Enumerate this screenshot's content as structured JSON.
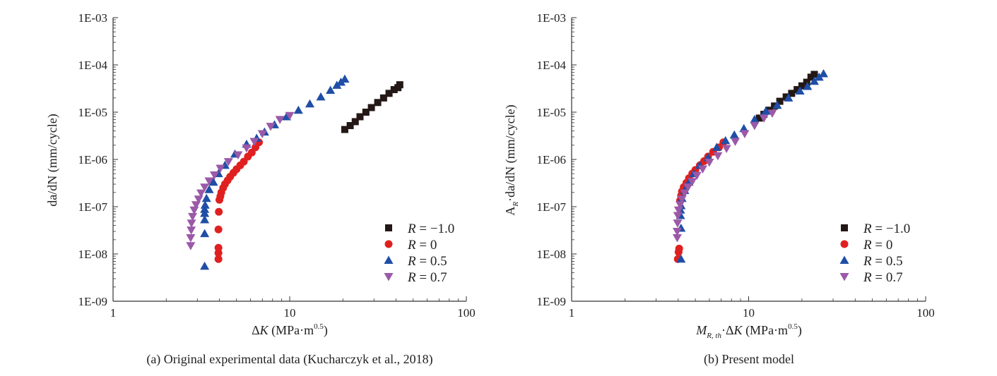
{
  "chart_data": [
    {
      "type": "scatter",
      "xscale": "log",
      "yscale": "log",
      "xlim": [
        1,
        100
      ],
      "ylim": [
        1e-09,
        0.001
      ],
      "xticks": [
        {
          "value": 1,
          "label": "1"
        },
        {
          "value": 10,
          "label": "10"
        },
        {
          "value": 100,
          "label": "100"
        }
      ],
      "yticks": [
        {
          "value": 1e-09,
          "label": "1E-09"
        },
        {
          "value": 1e-08,
          "label": "1E-08"
        },
        {
          "value": 1e-07,
          "label": "1E-07"
        },
        {
          "value": 1e-06,
          "label": "1E-06"
        },
        {
          "value": 1e-05,
          "label": "1E-05"
        },
        {
          "value": 0.0001,
          "label": "1E-04"
        },
        {
          "value": 0.001,
          "label": "1E-03"
        }
      ],
      "ylabel": "da/dN (mm/cycle)",
      "xlabel": {
        "prefix": "",
        "prefix_sub": "",
        "delta": "Δ",
        "k": "K",
        "unit": " (MPa·m",
        "sup": "0.5",
        "close": ")"
      },
      "caption": "(a) Original experimental data (Kucharczyk et al., 2018)",
      "legend_position": "bottom-right",
      "series": [
        {
          "name": "R = −1.0",
          "label_r": "R",
          "label_val": " = −1.0",
          "marker": "square",
          "color": "#231816",
          "points": [
            [
              20.5,
              4.3e-06
            ],
            [
              22,
              5.2e-06
            ],
            [
              23.5,
              6.3e-06
            ],
            [
              25,
              8e-06
            ],
            [
              27,
              1e-05
            ],
            [
              29,
              1.25e-05
            ],
            [
              31.5,
              1.6e-05
            ],
            [
              34,
              2e-05
            ],
            [
              36.5,
              2.5e-05
            ],
            [
              39,
              3e-05
            ],
            [
              41,
              3.3e-05
            ],
            [
              42,
              3.8e-05
            ]
          ]
        },
        {
          "name": "R = 0",
          "label_r": "R",
          "label_val": " = 0",
          "marker": "circle",
          "color": "#e02020",
          "points": [
            [
              3.95,
              7.8e-09
            ],
            [
              3.95,
              1.05e-08
            ],
            [
              3.95,
              1.35e-08
            ],
            [
              3.95,
              3.3e-08
            ],
            [
              3.97,
              7.8e-08
            ],
            [
              4.0,
              1.4e-07
            ],
            [
              4.05,
              1.65e-07
            ],
            [
              4.1,
              2e-07
            ],
            [
              4.2,
              2.5e-07
            ],
            [
              4.3,
              3e-07
            ],
            [
              4.45,
              3.6e-07
            ],
            [
              4.6,
              4.3e-07
            ],
            [
              4.8,
              5.2e-07
            ],
            [
              5.0,
              6.2e-07
            ],
            [
              5.25,
              7.5e-07
            ],
            [
              5.5,
              9e-07
            ],
            [
              5.8,
              1.15e-06
            ],
            [
              6.1,
              1.4e-06
            ],
            [
              6.4,
              1.8e-06
            ],
            [
              6.7,
              2.3e-06
            ]
          ]
        },
        {
          "name": "R = 0.5",
          "label_r": "R",
          "label_val": " = 0.5",
          "marker": "tri-up",
          "color": "#1f4ea6",
          "points": [
            [
              3.3,
              5.5e-09
            ],
            [
              3.3,
              2.7e-08
            ],
            [
              3.3,
              5.3e-08
            ],
            [
              3.3,
              7.2e-08
            ],
            [
              3.3,
              8.8e-08
            ],
            [
              3.32,
              1.08e-07
            ],
            [
              3.38,
              1.5e-07
            ],
            [
              3.5,
              2.3e-07
            ],
            [
              3.7,
              3.3e-07
            ],
            [
              3.95,
              5e-07
            ],
            [
              4.3,
              7.5e-07
            ],
            [
              4.9,
              1.3e-06
            ],
            [
              5.7,
              2.1e-06
            ],
            [
              6.5,
              2.8e-06
            ],
            [
              7.2,
              3.8e-06
            ],
            [
              8.2,
              5.4e-06
            ],
            [
              9.6,
              8e-06
            ],
            [
              11.2,
              1.1e-05
            ],
            [
              13,
              1.5e-05
            ],
            [
              15,
              2.1e-05
            ],
            [
              17,
              2.9e-05
            ],
            [
              18.5,
              3.7e-05
            ],
            [
              19.5,
              4.3e-05
            ],
            [
              20.5,
              5e-05
            ]
          ]
        },
        {
          "name": "R = 0.7",
          "label_r": "R",
          "label_val": " = 0.7",
          "marker": "tri-down",
          "color": "#9b59a8",
          "points": [
            [
              2.75,
              1.5e-08
            ],
            [
              2.75,
              2.2e-08
            ],
            [
              2.77,
              3.2e-08
            ],
            [
              2.78,
              4.5e-08
            ],
            [
              2.82,
              6.2e-08
            ],
            [
              2.88,
              8.5e-08
            ],
            [
              2.95,
              1.1e-07
            ],
            [
              3.05,
              1.45e-07
            ],
            [
              3.15,
              1.95e-07
            ],
            [
              3.3,
              2.6e-07
            ],
            [
              3.5,
              3.5e-07
            ],
            [
              3.75,
              4.7e-07
            ],
            [
              4.05,
              6.5e-07
            ],
            [
              4.5,
              9e-07
            ],
            [
              5.1,
              1.25e-06
            ],
            [
              5.7,
              1.75e-06
            ],
            [
              6.3,
              2.4e-06
            ],
            [
              7.0,
              3.5e-06
            ],
            [
              7.8,
              5e-06
            ],
            [
              8.8,
              7e-06
            ],
            [
              10.0,
              8.5e-06
            ]
          ]
        }
      ]
    },
    {
      "type": "scatter",
      "xscale": "log",
      "yscale": "log",
      "xlim": [
        1,
        100
      ],
      "ylim": [
        1e-09,
        0.001
      ],
      "xticks": [
        {
          "value": 1,
          "label": "1"
        },
        {
          "value": 10,
          "label": "10"
        },
        {
          "value": 100,
          "label": "100"
        }
      ],
      "yticks": [
        {
          "value": 1e-09,
          "label": "1E-09"
        },
        {
          "value": 1e-08,
          "label": "1E-08"
        },
        {
          "value": 1e-07,
          "label": "1E-07"
        },
        {
          "value": 1e-06,
          "label": "1E-06"
        },
        {
          "value": 1e-05,
          "label": "1E-05"
        },
        {
          "value": 0.0001,
          "label": "1E-04"
        },
        {
          "value": 0.001,
          "label": "1E-03"
        }
      ],
      "ylabel_parts": {
        "a": "A",
        "a_sub": "R",
        "rest": "·da/dN (mm/cycle)"
      },
      "xlabel": {
        "prefix": "M",
        "prefix_sub": "R, th",
        "delta": "·Δ",
        "k": "K",
        "unit": " (MPa·m",
        "sup": "0.5",
        "close": ")"
      },
      "caption": "(b) Present model",
      "legend_position": "bottom-right",
      "series": [
        {
          "name": "R = −1.0",
          "label_r": "R",
          "label_val": " = −1.0",
          "marker": "square",
          "color": "#231816",
          "points": [
            [
              11.5,
              7.5e-06
            ],
            [
              12.2,
              9e-06
            ],
            [
              13,
              1.1e-05
            ],
            [
              14,
              1.35e-05
            ],
            [
              15,
              1.7e-05
            ],
            [
              16.3,
              2.1e-05
            ],
            [
              17.5,
              2.5e-05
            ],
            [
              18.8,
              3e-05
            ],
            [
              20,
              3.6e-05
            ],
            [
              21.3,
              4.3e-05
            ],
            [
              22.5,
              5.5e-05
            ],
            [
              23.5,
              6.3e-05
            ]
          ]
        },
        {
          "name": "R = 0",
          "label_r": "R",
          "label_val": " = 0",
          "marker": "circle",
          "color": "#e02020",
          "points": [
            [
              3.98,
              7.8e-09
            ],
            [
              4.02,
              1.1e-08
            ],
            [
              4.05,
              1.3e-08
            ],
            [
              4.1,
              1.35e-07
            ],
            [
              4.15,
              1.7e-07
            ],
            [
              4.2,
              2.1e-07
            ],
            [
              4.3,
              2.6e-07
            ],
            [
              4.45,
              3.2e-07
            ],
            [
              4.6,
              4e-07
            ],
            [
              4.8,
              5e-07
            ],
            [
              5.0,
              6e-07
            ],
            [
              5.3,
              7.5e-07
            ],
            [
              5.6,
              9.2e-07
            ],
            [
              5.9,
              1.15e-06
            ],
            [
              6.3,
              1.45e-06
            ],
            [
              6.8,
              1.8e-06
            ],
            [
              7.2,
              2.3e-06
            ]
          ]
        },
        {
          "name": "R = 0.5",
          "label_r": "R",
          "label_val": " = 0.5",
          "marker": "tri-up",
          "color": "#1f4ea6",
          "points": [
            [
              4.15,
              7.8e-09
            ],
            [
              4.15,
              3.5e-08
            ],
            [
              4.12,
              6.5e-08
            ],
            [
              4.12,
              8.5e-08
            ],
            [
              4.15,
              1.05e-07
            ],
            [
              4.2,
              1.5e-07
            ],
            [
              4.35,
              2.2e-07
            ],
            [
              4.6,
              3.3e-07
            ],
            [
              4.9,
              5e-07
            ],
            [
              5.3,
              7.5e-07
            ],
            [
              5.9,
              1.1e-06
            ],
            [
              6.6,
              1.8e-06
            ],
            [
              7.4,
              2.5e-06
            ],
            [
              8.3,
              3.3e-06
            ],
            [
              9.4,
              4.5e-06
            ],
            [
              10.8,
              7e-06
            ],
            [
              12.5,
              1.05e-05
            ],
            [
              14.5,
              1.4e-05
            ],
            [
              16.8,
              2e-05
            ],
            [
              19.5,
              2.8e-05
            ],
            [
              21.5,
              3.5e-05
            ],
            [
              23.5,
              4.5e-05
            ],
            [
              25,
              5.5e-05
            ],
            [
              26.5,
              6.5e-05
            ]
          ]
        },
        {
          "name": "R = 0.7",
          "label_r": "R",
          "label_val": " = 0.7",
          "marker": "tri-down",
          "color": "#9b59a8",
          "points": [
            [
              3.95,
              2.2e-08
            ],
            [
              3.95,
              3e-08
            ],
            [
              3.97,
              4.5e-08
            ],
            [
              3.98,
              6.5e-08
            ],
            [
              4.02,
              8.5e-08
            ],
            [
              4.1,
              1.1e-07
            ],
            [
              4.2,
              1.45e-07
            ],
            [
              4.35,
              1.95e-07
            ],
            [
              4.55,
              2.6e-07
            ],
            [
              4.8,
              3.4e-07
            ],
            [
              5.1,
              4.6e-07
            ],
            [
              5.5,
              6.3e-07
            ],
            [
              6.0,
              8.7e-07
            ],
            [
              6.7,
              1.2e-06
            ],
            [
              7.5,
              1.7e-06
            ],
            [
              8.4,
              2.4e-06
            ],
            [
              9.5,
              3.5e-06
            ],
            [
              10.8,
              5.2e-06
            ],
            [
              12.2,
              7.5e-06
            ],
            [
              13.6,
              9.5e-06
            ]
          ]
        }
      ]
    }
  ]
}
